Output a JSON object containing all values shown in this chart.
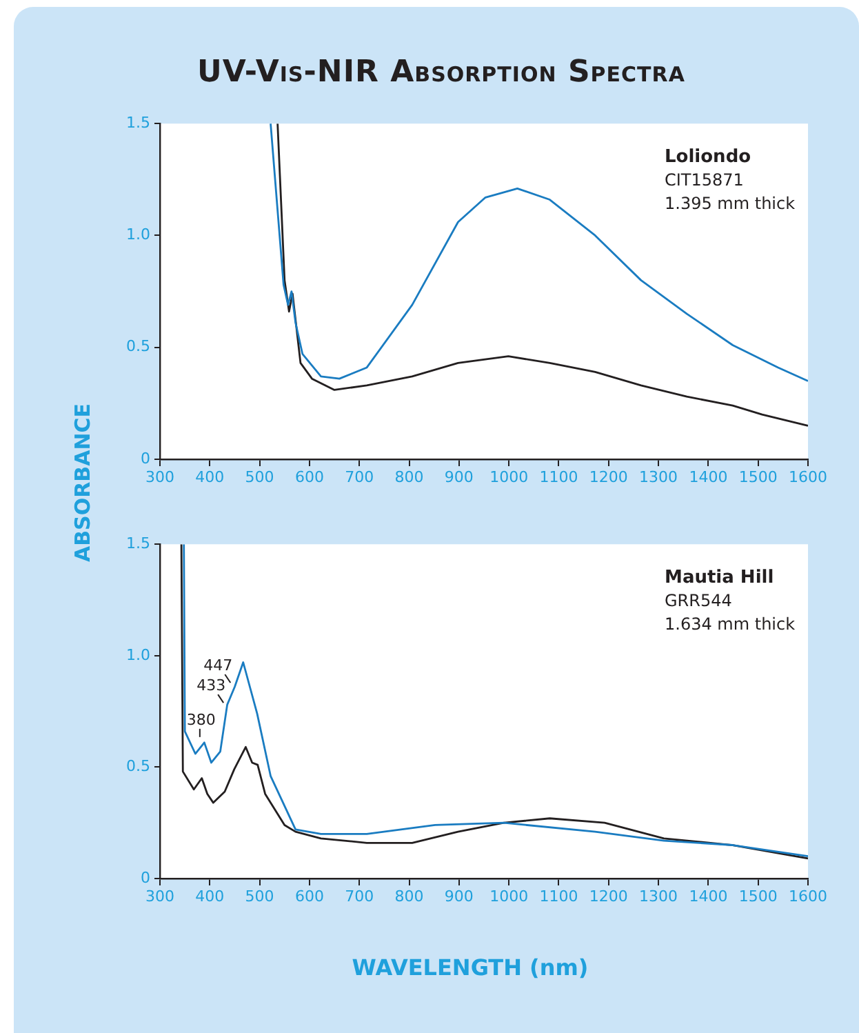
{
  "chart_data": [
    {
      "type": "line",
      "title": "UV-Vis-NIR Absorption Spectra",
      "ylabel": "ABSORBANCE",
      "xlim": [
        300,
        1600
      ],
      "xticks": [
        300,
        400,
        500,
        600,
        700,
        800,
        900,
        1000,
        1100,
        1200,
        1300,
        1400,
        1500,
        1600
      ],
      "ylim": [
        0,
        1.5
      ],
      "yticks": [
        0,
        0.5,
        {
          "value": 1,
          "label": "1.0"
        },
        1.5
      ],
      "grid": false,
      "legend": false,
      "marker": "none",
      "line_style": "solid",
      "annotations": [
        "Loliondo",
        "CIT15871",
        "1.395 mm thick"
      ],
      "series": [
        {
          "color": "#1a7cc1",
          "x": [
            522,
            548,
            557,
            564,
            572,
            586,
            623,
            660,
            715,
            806,
            898,
            953,
            1017,
            1082,
            1173,
            1265,
            1357,
            1449,
            1540,
            1600
          ],
          "values": [
            1.5,
            0.78,
            0.69,
            0.75,
            0.61,
            0.47,
            0.37,
            0.36,
            0.41,
            0.69,
            1.06,
            1.17,
            1.21,
            1.16,
            1.0,
            0.8,
            0.65,
            0.51,
            0.41,
            0.35
          ]
        },
        {
          "color": "#231f20",
          "x": [
            536,
            550,
            559,
            566,
            582,
            605,
            650,
            715,
            806,
            898,
            999,
            1082,
            1173,
            1265,
            1357,
            1449,
            1508,
            1600
          ],
          "values": [
            1.5,
            0.8,
            0.66,
            0.74,
            0.43,
            0.36,
            0.31,
            0.33,
            0.37,
            0.43,
            0.46,
            0.43,
            0.39,
            0.33,
            0.28,
            0.24,
            0.2,
            0.15
          ]
        }
      ]
    },
    {
      "type": "line",
      "xlabel": "WAVELENGTH (nm)",
      "xlim": [
        300,
        1600
      ],
      "xticks": [
        300,
        400,
        500,
        600,
        700,
        800,
        900,
        1000,
        1100,
        1200,
        1300,
        1400,
        1500,
        1600
      ],
      "ylim": [
        0,
        1.5
      ],
      "yticks": [
        0,
        0.5,
        {
          "value": 1,
          "label": "1.0"
        },
        1.5
      ],
      "grid": false,
      "legend": false,
      "marker": "none",
      "line_style": "solid",
      "annotations": [
        "Mautia Hill",
        "GRR544",
        "1.634 mm thick",
        {
          "text": "380",
          "x": 380,
          "y": 0.61
        },
        {
          "text": "433",
          "x": 433,
          "y": 0.77
        },
        {
          "text": "447",
          "x": 447,
          "y": 0.86
        }
      ],
      "series": [
        {
          "color": "#1a7cc1",
          "x": [
            348,
            350,
            371,
            389,
            403,
            421,
            435,
            450,
            467,
            495,
            522,
            572,
            623,
            715,
            852,
            990,
            1173,
            1311,
            1449,
            1600
          ],
          "values": [
            1.5,
            0.66,
            0.56,
            0.61,
            0.52,
            0.57,
            0.78,
            0.86,
            0.97,
            0.74,
            0.46,
            0.22,
            0.2,
            0.2,
            0.24,
            0.25,
            0.21,
            0.17,
            0.15,
            0.1
          ]
        },
        {
          "color": "#231f20",
          "x": [
            343,
            346,
            368,
            384,
            395,
            407,
            430,
            449,
            472,
            485,
            496,
            511,
            550,
            572,
            623,
            715,
            806,
            898,
            990,
            1082,
            1192,
            1311,
            1449,
            1600
          ],
          "values": [
            1.5,
            0.48,
            0.4,
            0.45,
            0.38,
            0.34,
            0.39,
            0.49,
            0.59,
            0.52,
            0.51,
            0.38,
            0.24,
            0.21,
            0.18,
            0.16,
            0.16,
            0.21,
            0.25,
            0.27,
            0.25,
            0.18,
            0.15,
            0.09
          ]
        }
      ]
    }
  ]
}
